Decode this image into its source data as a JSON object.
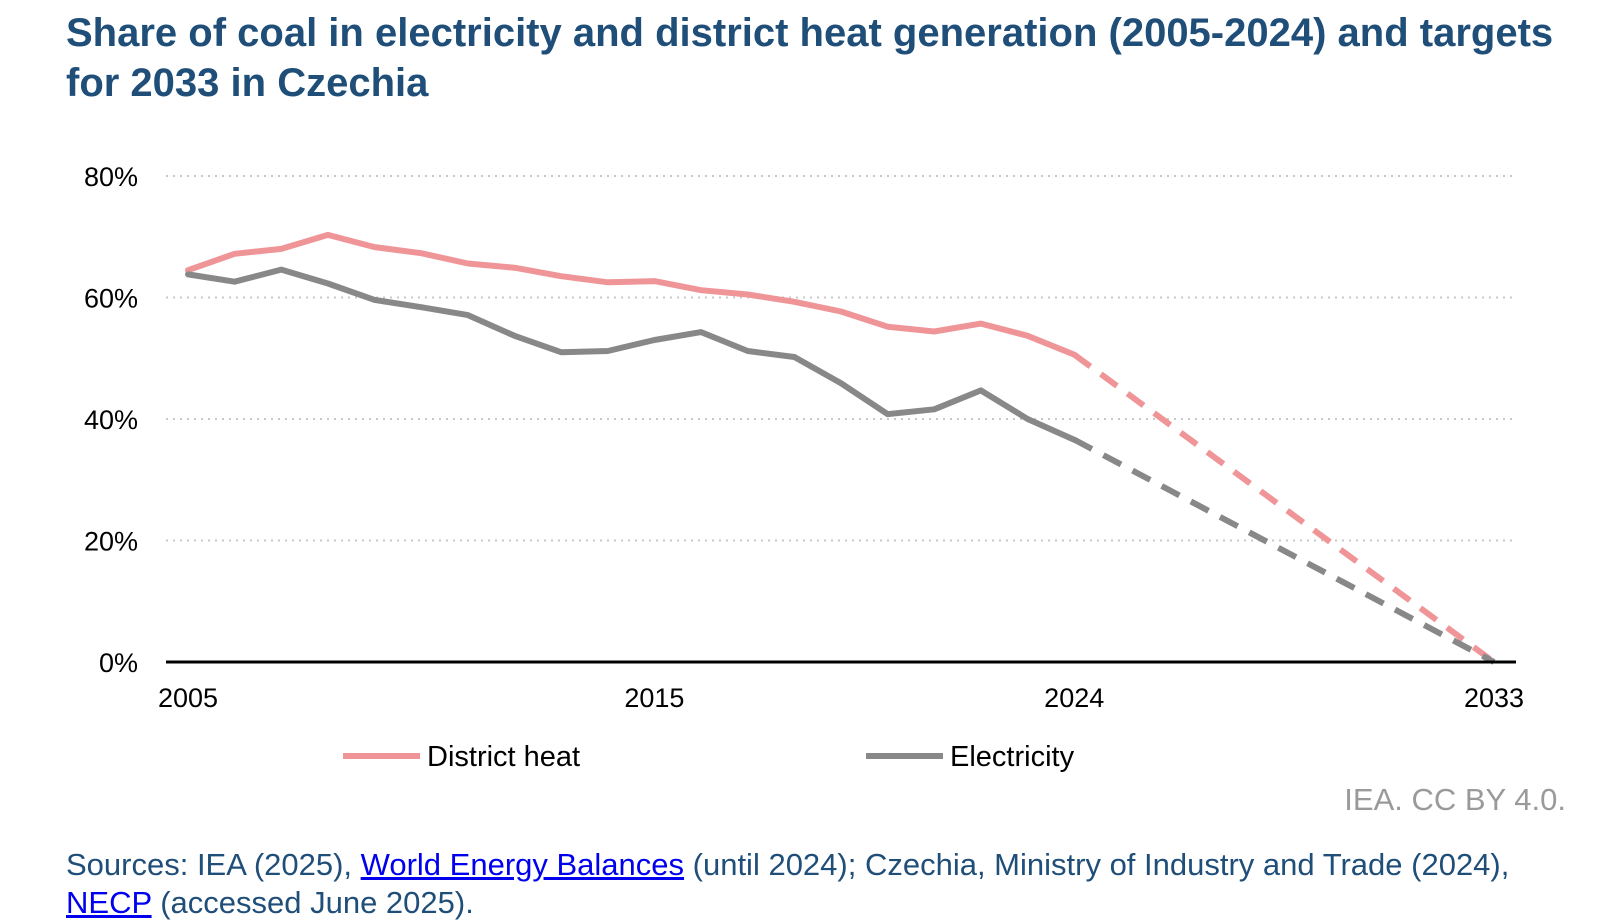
{
  "title": "Share of coal in electricity and district heat generation (2005-2024) and targets for 2033 in Czechia",
  "colors": {
    "title": "#1f4e79",
    "district_heat": "#ef9597",
    "electricity": "#888888",
    "grid": "#c8c8c8",
    "axis": "#000000",
    "credit": "#9a9a9a",
    "link": "#0000ee",
    "sources": "#1f4e79"
  },
  "chart_data": {
    "type": "line",
    "title": "Share of coal in electricity and district heat generation (2005-2024) and targets for 2033 in Czechia",
    "x_domain": [
      2005,
      2033
    ],
    "x_tick_labels": [
      "2005",
      "2015",
      "2024",
      "2033"
    ],
    "x_tick_values": [
      2005,
      2015,
      2024,
      2033
    ],
    "y_tick_labels": [
      "0%",
      "20%",
      "40%",
      "60%",
      "80%"
    ],
    "y_tick_values": [
      0,
      20,
      40,
      60,
      80
    ],
    "ylim": [
      0,
      80
    ],
    "grid": "horizontal dotted",
    "legend_position": "bottom",
    "x": [
      2005,
      2006,
      2007,
      2008,
      2009,
      2010,
      2011,
      2012,
      2013,
      2014,
      2015,
      2016,
      2017,
      2018,
      2019,
      2020,
      2021,
      2022,
      2023,
      2024
    ],
    "series": [
      {
        "name": "District heat",
        "color": "#ef9597",
        "values": [
          64.5,
          67.2,
          68.0,
          70.3,
          68.3,
          67.3,
          65.6,
          64.9,
          63.5,
          62.5,
          62.7,
          61.2,
          60.5,
          59.3,
          57.7,
          55.2,
          54.4,
          55.7,
          53.7,
          50.6
        ],
        "target_year": 2033,
        "target_value": 0
      },
      {
        "name": "Electricity",
        "color": "#888888",
        "values": [
          63.8,
          62.6,
          64.6,
          62.3,
          59.6,
          58.4,
          57.1,
          53.7,
          51.0,
          51.2,
          53.0,
          54.3,
          51.2,
          50.2,
          45.9,
          40.8,
          41.6,
          44.7,
          40.0,
          36.6
        ],
        "target_year": 2033,
        "target_value": 0
      }
    ]
  },
  "legend": [
    {
      "label": "District heat"
    },
    {
      "label": "Electricity"
    }
  ],
  "credit": "IEA. CC BY 4.0.",
  "sources": {
    "prefix": "Sources: IEA (2025), ",
    "link1": "World Energy Balances",
    "middle": " (until 2024); Czechia, Ministry of Industry and Trade (2024), ",
    "link2": "NECP",
    "suffix": " (accessed June 2025)."
  }
}
